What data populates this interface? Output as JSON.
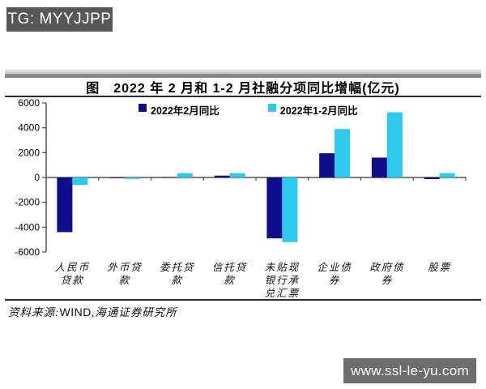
{
  "badge": {
    "label": "TG: MYYJJPP"
  },
  "watermark": {
    "label": "www.ssl-le-yu.com"
  },
  "source": {
    "prefix": "资料来源:",
    "vendor": "WIND",
    "separator": ",",
    "org": "海通证券研究所"
  },
  "colors": {
    "badge_bg": "#575757",
    "watermark_bg": "#6d6d6d",
    "series_feb": "#0e0e8c",
    "series_jan_feb": "#2ec9f0",
    "axis": "#4a4a4a",
    "rule": "#2b2b2b"
  },
  "chart_data": {
    "type": "bar",
    "title": "图　2022 年 2 月和 1-2 月社融分项同比增幅(亿元)",
    "unit": "亿元",
    "categories": [
      "人民币贷款",
      "外币贷款",
      "委托贷款",
      "信托贷款",
      "未贴现银行承兑汇票",
      "企业债券",
      "政府债券",
      "股票"
    ],
    "category_label_lines": [
      [
        "人民币",
        "贷款"
      ],
      [
        "外币贷",
        "款"
      ],
      [
        "委托贷",
        "款"
      ],
      [
        "信托贷",
        "款"
      ],
      [
        "未贴现",
        "银行承",
        "兑汇票"
      ],
      [
        "企业债",
        "券"
      ],
      [
        "政府债",
        "券"
      ],
      [
        "股票"
      ]
    ],
    "series": [
      {
        "name": "2022年2月同比",
        "color": "#0e0e8c",
        "values": [
          -4400,
          -50,
          30,
          150,
          -4900,
          1950,
          1600,
          -130
        ]
      },
      {
        "name": "2022年1-2月同比",
        "color": "#2ec9f0",
        "values": [
          -600,
          -120,
          350,
          350,
          -5200,
          3900,
          5250,
          350
        ]
      }
    ],
    "xlabel": "",
    "ylabel": "",
    "ylim": [
      -6000,
      6000
    ],
    "yticks": [
      6000,
      4000,
      2000,
      0,
      -2000,
      -4000,
      -6000
    ],
    "grid": false,
    "legend_position": "top"
  }
}
